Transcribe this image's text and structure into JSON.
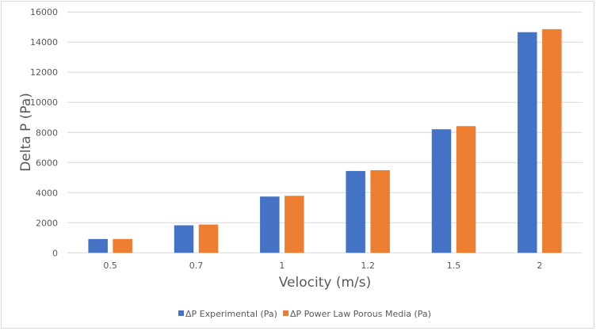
{
  "chart_data": {
    "type": "bar",
    "title": "",
    "xlabel": "Velocity (m/s)",
    "ylabel": "Delta P (Pa)",
    "categories": [
      "0.5",
      "0.7",
      "1",
      "1.2",
      "1.5",
      "2"
    ],
    "series": [
      {
        "name": "ΔP Experimental (Pa)",
        "color": "#4472C4",
        "values": [
          920,
          1830,
          3740,
          5440,
          8210,
          14660
        ]
      },
      {
        "name": "ΔP Power Law Porous Media (Pa)",
        "color": "#ED7D31",
        "values": [
          920,
          1880,
          3790,
          5490,
          8420,
          14860
        ]
      }
    ],
    "ylim": [
      0,
      16000
    ],
    "yticks": [
      "0",
      "2000",
      "4000",
      "6000",
      "8000",
      "10000",
      "12000",
      "14000",
      "16000"
    ],
    "grid": true,
    "legend_position": "bottom"
  }
}
